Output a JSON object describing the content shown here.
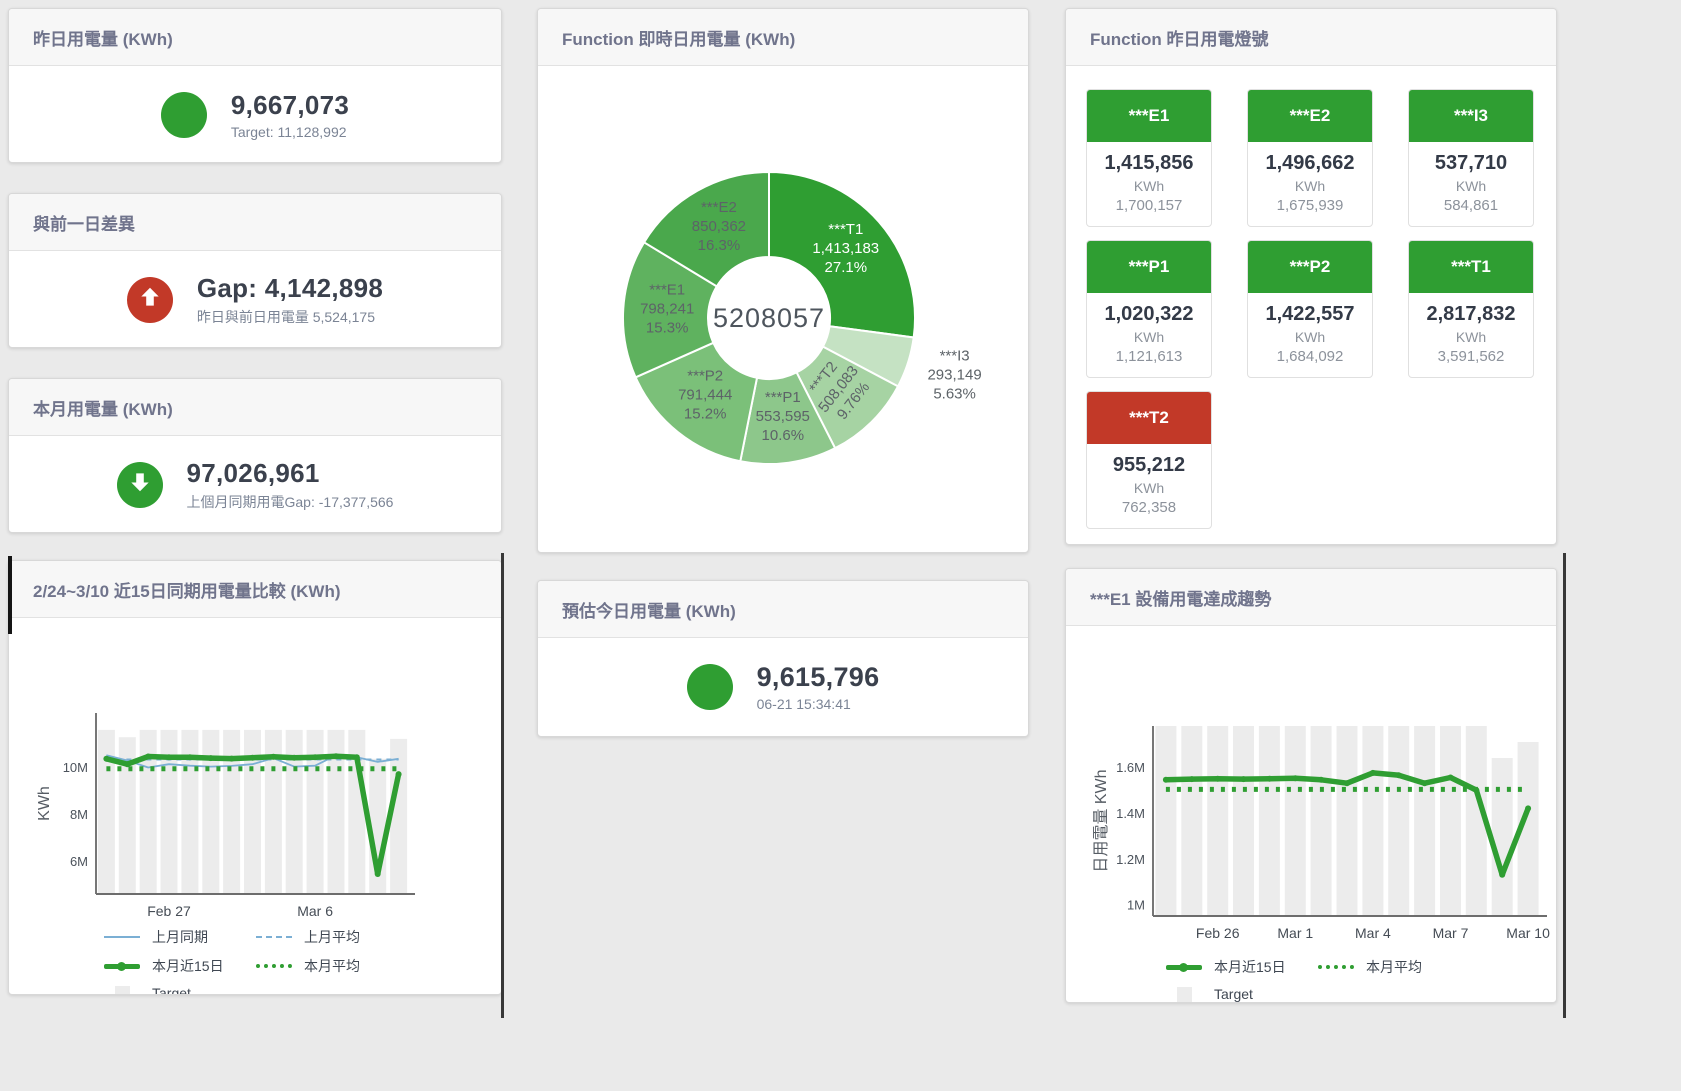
{
  "accent": {
    "green": "#2f9e32",
    "red": "#c23928",
    "blue": "#7bafd4",
    "target_gray": "#ececec"
  },
  "cards": {
    "yesterday": {
      "title": "昨日用電量 (KWh)",
      "value": "9,667,073",
      "subtext": "Target: 11,128,992",
      "status": "green"
    },
    "gap_prev_day": {
      "title": "與前一日差異",
      "value": "Gap: 4,142,898",
      "subtext": "昨日與前日用電量 5,524,175",
      "status": "red"
    },
    "month": {
      "title": "本月用電量 (KWh)",
      "value": "97,026,961",
      "subtext": "上個月同期用電Gap: -17,377,566",
      "status": "green"
    },
    "estimate_today": {
      "title": "預估今日用電量 (KWh)",
      "value": "9,615,796",
      "subtext": "06-21 15:34:41",
      "status": "green"
    }
  },
  "donut_card": {
    "title": "Function 即時日用電量 (KWh)"
  },
  "compare_card": {
    "title": "2/24~3/10 近15日同期用電量比較 (KWh)"
  },
  "trend_card": {
    "title": "***E1 設備用電達成趨勢"
  },
  "lights": {
    "title": "Function 昨日用電燈號",
    "unit": "KWh",
    "tiles": [
      {
        "label": "***E1",
        "value": "1,415,856",
        "target": "1,700,157",
        "status": "green"
      },
      {
        "label": "***E2",
        "value": "1,496,662",
        "target": "1,675,939",
        "status": "green"
      },
      {
        "label": "***I3",
        "value": "537,710",
        "target": "584,861",
        "status": "green"
      },
      {
        "label": "***P1",
        "value": "1,020,322",
        "target": "1,121,613",
        "status": "green"
      },
      {
        "label": "***P2",
        "value": "1,422,557",
        "target": "1,684,092",
        "status": "green"
      },
      {
        "label": "***T1",
        "value": "2,817,832",
        "target": "3,591,562",
        "status": "green"
      },
      {
        "label": "***T2",
        "value": "955,212",
        "target": "762,358",
        "status": "red"
      }
    ]
  },
  "chart_data": [
    {
      "type": "pie",
      "title": "Function 即時日用電量 (KWh)",
      "center_total": "5208057",
      "segments": [
        {
          "label": "***T1",
          "value": 1413183,
          "value_label": "1,413,183",
          "pct_label": "27.1%",
          "color": "#2f9e32",
          "text_color": "#ffffff"
        },
        {
          "label": "***I3",
          "value": 293149,
          "value_label": "293,149",
          "pct_label": "5.63%",
          "color": "#c5e2c3",
          "outside": true
        },
        {
          "label": "***T2",
          "value": 508083,
          "value_label": "508,083",
          "pct_label": "9.76%",
          "color": "#a6d3a3",
          "rotate": -52
        },
        {
          "label": "***P1",
          "value": 553595,
          "value_label": "553,595",
          "pct_label": "10.6%",
          "color": "#8dc78b"
        },
        {
          "label": "***P2",
          "value": 791444,
          "value_label": "791,444",
          "pct_label": "15.2%",
          "color": "#7bc079"
        },
        {
          "label": "***E1",
          "value": 798241,
          "value_label": "798,241",
          "pct_label": "15.3%",
          "color": "#5fb25f"
        },
        {
          "label": "***E2",
          "value": 850362,
          "value_label": "850,362",
          "pct_label": "16.3%",
          "color": "#4aa84c"
        }
      ]
    },
    {
      "type": "line",
      "title": "2/24~3/10 近15日同期用電量比較 (KWh)",
      "ylabel": "KWh",
      "ylim": [
        4600000,
        12300000
      ],
      "yticks": [
        {
          "v": 6000000,
          "label": "6M"
        },
        {
          "v": 8000000,
          "label": "8M"
        },
        {
          "v": 10000000,
          "label": "10M"
        }
      ],
      "xticks": [
        {
          "i": 3,
          "label": "Feb 27"
        },
        {
          "i": 10,
          "label": "Mar 6"
        }
      ],
      "target_bars": {
        "name": "Target",
        "color": "#ececec",
        "values": [
          11580000,
          11270000,
          11580000,
          11580000,
          11580000,
          11580000,
          11580000,
          11580000,
          11580000,
          11580000,
          11580000,
          11580000,
          11580000,
          10350000,
          11200000
        ]
      },
      "series": [
        {
          "name": "上月同期",
          "color": "#7bafd4",
          "width": 1.8,
          "values": [
            10500000,
            10280000,
            9980000,
            10120000,
            10060000,
            10020000,
            10050000,
            10120000,
            10380000,
            10020000,
            10060000,
            10500000,
            10420000,
            10220000,
            10350000
          ]
        },
        {
          "name": "上月平均",
          "color": "#7bafd4",
          "width": 2,
          "dash": "5 5",
          "value": 10320000
        },
        {
          "name": "本月平均",
          "color": "#2f9e32",
          "width": 5,
          "dash": "4 7",
          "value": 9930000
        },
        {
          "name": "本月近15日",
          "color": "#2f9e32",
          "width": 5.5,
          "dots": 3,
          "values": [
            10350000,
            10120000,
            10450000,
            10420000,
            10420000,
            10380000,
            10360000,
            10400000,
            10440000,
            10400000,
            10420000,
            10460000,
            10420000,
            5450000,
            9700000
          ]
        }
      ],
      "legend": [
        {
          "label": "上月同期",
          "swatch": "line-blue"
        },
        {
          "label": "上月平均",
          "swatch": "dash-blue"
        },
        {
          "label": "本月近15日",
          "swatch": "thick-green"
        },
        {
          "label": "本月平均",
          "swatch": "dots-green"
        },
        {
          "label": "Target",
          "swatch": "box-gray"
        }
      ]
    },
    {
      "type": "line",
      "title": "***E1 設備用電達成趨勢",
      "ylabel": "日用電量 KWh",
      "ylim": [
        950000,
        1780000
      ],
      "yticks": [
        {
          "v": 1000000,
          "label": "1M"
        },
        {
          "v": 1200000,
          "label": "1.2M"
        },
        {
          "v": 1400000,
          "label": "1.4M"
        },
        {
          "v": 1600000,
          "label": "1.6M"
        }
      ],
      "xticks": [
        {
          "i": 2,
          "label": "Feb 26"
        },
        {
          "i": 5,
          "label": "Mar 1"
        },
        {
          "i": 8,
          "label": "Mar 4"
        },
        {
          "i": 11,
          "label": "Mar 7"
        },
        {
          "i": 14,
          "label": "Mar 10"
        }
      ],
      "target_bars": {
        "name": "Target",
        "color": "#ececec",
        "values": [
          1790000,
          1790000,
          1790000,
          1790000,
          1790000,
          1790000,
          1790000,
          1790000,
          1790000,
          1790000,
          1790000,
          1790000,
          1790000,
          1640000,
          1710000
        ]
      },
      "series": [
        {
          "name": "本月平均",
          "color": "#2f9e32",
          "width": 5,
          "dash": "4 7",
          "value": 1503000
        },
        {
          "name": "本月近15日",
          "color": "#2f9e32",
          "width": 5.5,
          "dots": 3,
          "values": [
            1545000,
            1548000,
            1550000,
            1548000,
            1550000,
            1552000,
            1545000,
            1530000,
            1575000,
            1565000,
            1530000,
            1555000,
            1500000,
            1130000,
            1420000
          ]
        }
      ],
      "legend": [
        {
          "label": "本月近15日",
          "swatch": "thick-green"
        },
        {
          "label": "本月平均",
          "swatch": "dots-green"
        },
        {
          "label": "Target",
          "swatch": "box-gray"
        }
      ]
    }
  ]
}
